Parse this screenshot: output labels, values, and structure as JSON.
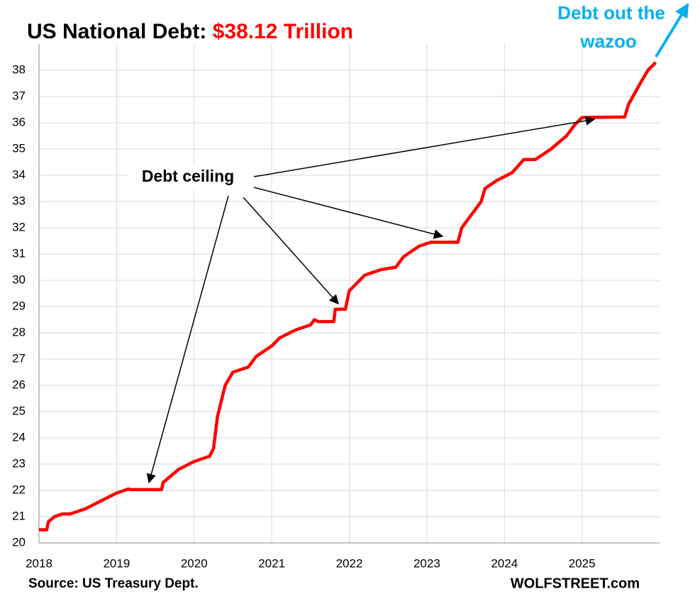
{
  "chart_data": {
    "type": "line",
    "title": "US National Debt:",
    "title_highlight": "$38.12 Trillion",
    "annotations": [
      "Debt ceiling",
      "Debt out the wazoo"
    ],
    "source": "Source: US Treasury Dept.",
    "credit": "WOLFSTREET.com",
    "xlim": [
      2018,
      2026
    ],
    "xticks": [
      2018,
      2019,
      2020,
      2021,
      2022,
      2023,
      2024,
      2025
    ],
    "ylim": [
      20,
      39
    ],
    "yticks": [
      20,
      21,
      22,
      23,
      24,
      25,
      26,
      27,
      28,
      29,
      30,
      31,
      32,
      33,
      34,
      35,
      36,
      37,
      38
    ],
    "grid": true,
    "series": [
      {
        "name": "US National Debt",
        "color": "#ff0000",
        "x": [
          2018.0,
          2018.1,
          2018.12,
          2018.2,
          2018.3,
          2018.4,
          2018.6,
          2018.8,
          2019.0,
          2019.15,
          2019.18,
          2019.58,
          2019.6,
          2019.8,
          2020.0,
          2020.2,
          2020.25,
          2020.3,
          2020.4,
          2020.5,
          2020.7,
          2020.8,
          2021.0,
          2021.1,
          2021.3,
          2021.5,
          2021.55,
          2021.6,
          2021.8,
          2021.82,
          2021.95,
          2022.0,
          2022.2,
          2022.4,
          2022.6,
          2022.7,
          2022.9,
          2023.05,
          2023.4,
          2023.45,
          2023.6,
          2023.7,
          2023.75,
          2023.9,
          2024.1,
          2024.25,
          2024.4,
          2024.6,
          2024.8,
          2024.9,
          2025.0,
          2025.55,
          2025.6,
          2025.75,
          2025.85,
          2025.95
        ],
        "values": [
          20.5,
          20.5,
          20.8,
          21.0,
          21.1,
          21.1,
          21.3,
          21.6,
          21.9,
          22.05,
          22.03,
          22.03,
          22.3,
          22.8,
          23.1,
          23.3,
          23.6,
          24.8,
          26.0,
          26.5,
          26.7,
          27.1,
          27.5,
          27.8,
          28.1,
          28.3,
          28.5,
          28.43,
          28.43,
          28.9,
          28.9,
          29.6,
          30.2,
          30.4,
          30.5,
          30.9,
          31.3,
          31.45,
          31.45,
          32.0,
          32.6,
          33.0,
          33.5,
          33.8,
          34.1,
          34.6,
          34.6,
          35.0,
          35.5,
          35.9,
          36.2,
          36.22,
          36.7,
          37.5,
          38.0,
          38.3
        ]
      }
    ]
  }
}
